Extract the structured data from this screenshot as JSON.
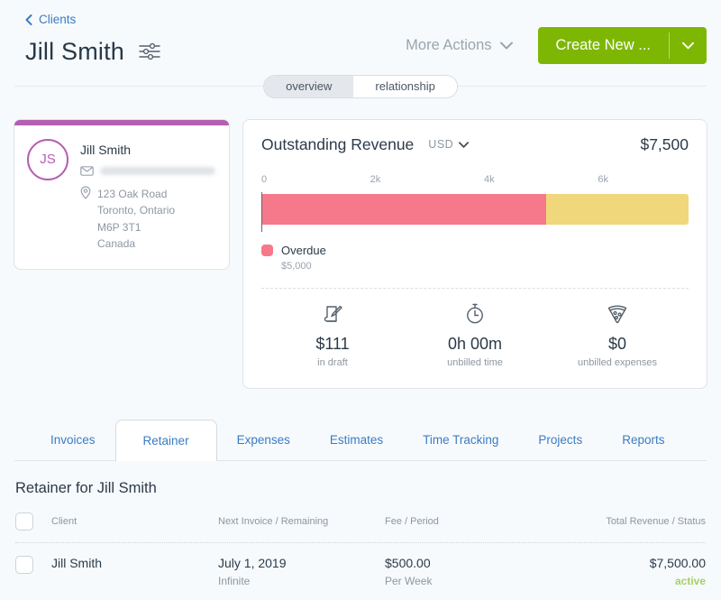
{
  "header": {
    "breadcrumb": "Clients",
    "title": "Jill Smith",
    "more_actions_label": "More Actions",
    "create_new_label": "Create New ..."
  },
  "view_toggle": {
    "overview_label": "overview",
    "relationship_label": "relationship",
    "active": "overview"
  },
  "client_card": {
    "initials": "JS",
    "name": "Jill Smith",
    "email_hidden": true,
    "address_line1": "123 Oak Road",
    "address_line2": "Toronto, Ontario",
    "address_line3": "M6P 3T1",
    "address_line4": "Canada",
    "accent_color": "#b55fb1"
  },
  "revenue_card": {
    "title": "Outstanding Revenue",
    "currency": "USD",
    "amount": "$7,500",
    "legend_label": "Overdue",
    "legend_value": "$5,000",
    "stats": [
      {
        "icon": "draft-document-icon",
        "value": "$111",
        "label": "in draft"
      },
      {
        "icon": "stopwatch-icon",
        "value": "0h 00m",
        "label": "unbilled time"
      },
      {
        "icon": "pizza-icon",
        "value": "$0",
        "label": "unbilled expenses"
      }
    ]
  },
  "chart_data": {
    "type": "bar",
    "orientation": "horizontal-stacked",
    "title": "Outstanding Revenue",
    "currency": "USD",
    "total": 7500,
    "axis_max": 7500,
    "ticks": [
      {
        "label": "0",
        "value": 0
      },
      {
        "label": "2k",
        "value": 2000
      },
      {
        "label": "4k",
        "value": 4000
      },
      {
        "label": "6k",
        "value": 6000
      }
    ],
    "segments": [
      {
        "label": "Overdue",
        "value": 5000,
        "color": "#f5798b"
      },
      {
        "label": "",
        "value": 2500,
        "color": "#f0d77c"
      }
    ],
    "legend": [
      {
        "label": "Overdue",
        "value": "$5,000",
        "color": "#f5798b"
      }
    ]
  },
  "tabs": {
    "items": [
      "Invoices",
      "Retainer",
      "Expenses",
      "Estimates",
      "Time Tracking",
      "Projects",
      "Reports"
    ],
    "active": "Retainer"
  },
  "retainer_section": {
    "heading": "Retainer for Jill Smith",
    "table": {
      "headers": [
        "Client",
        "Next Invoice / Remaining",
        "Fee / Period",
        "Total Revenue / Status"
      ],
      "rows": [
        {
          "client": "Jill Smith",
          "next_invoice": "July 1, 2019",
          "remaining": "Infinite",
          "fee": "$500.00",
          "period": "Per Week",
          "total_revenue": "$7,500.00",
          "status": "active"
        }
      ]
    }
  },
  "colors": {
    "primary_green": "#7db704",
    "link_blue": "#3b7bc4",
    "status_active_green": "#a3d166",
    "overdue_pink": "#f5798b",
    "remainder_yellow": "#f0d77c",
    "accent_purple": "#b55fb1"
  }
}
